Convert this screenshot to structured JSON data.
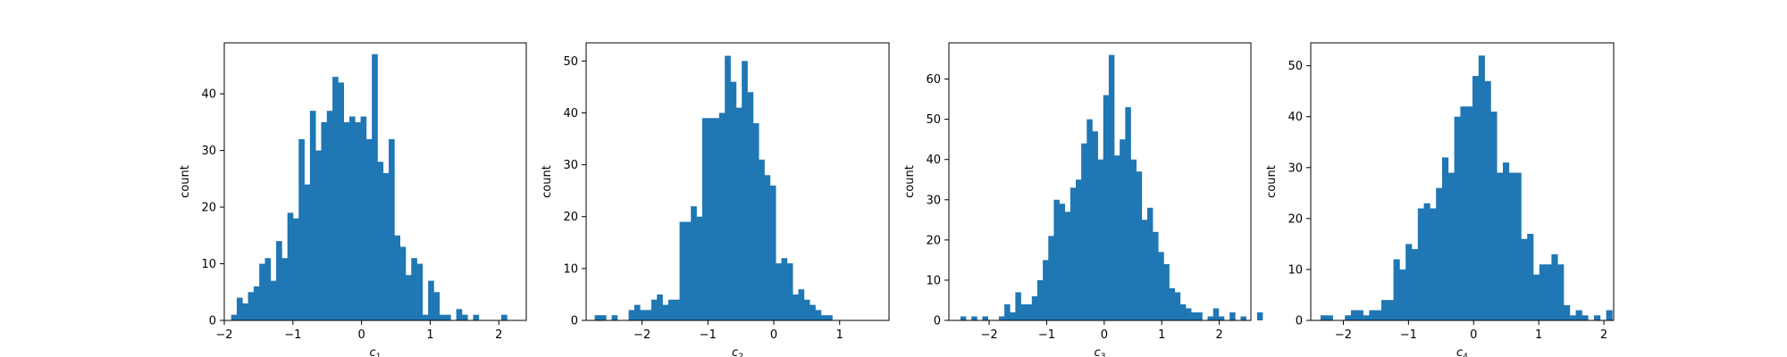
{
  "figure": {
    "background": "#ffffff",
    "bar_color": "#1f77b4"
  },
  "chart_data": [
    {
      "type": "bar",
      "title": "",
      "xlabel_main": "c",
      "xlabel_sub": "1",
      "ylabel": "count",
      "xlim": [
        -2.0,
        2.4
      ],
      "ylim": [
        0,
        49
      ],
      "xticks": [
        -2,
        -1,
        0,
        1,
        2
      ],
      "xtick_labels": [
        "−2",
        "−1",
        "0",
        "1",
        "2"
      ],
      "yticks": [
        0,
        10,
        20,
        30,
        40
      ],
      "bin_start": -1.9,
      "bin_width": 0.082,
      "values": [
        1,
        4,
        3,
        5,
        6,
        10,
        11,
        7,
        14,
        11,
        19,
        18,
        32,
        24,
        37,
        30,
        35,
        37,
        43,
        42,
        35,
        36,
        35,
        36,
        32,
        47,
        28,
        26,
        32,
        15,
        13,
        8,
        11,
        10,
        1,
        7,
        5,
        1,
        1,
        0,
        2,
        1,
        0,
        1,
        0,
        0,
        0,
        0,
        1
      ]
    },
    {
      "type": "bar",
      "title": "",
      "xlabel_main": "c",
      "xlabel_sub": "2",
      "ylabel": "count",
      "xlim": [
        -2.85,
        1.75
      ],
      "ylim": [
        0,
        53.5
      ],
      "xticks": [
        -2,
        -1,
        0,
        1
      ],
      "xtick_labels": [
        "−2",
        "−1",
        "0",
        "1"
      ],
      "yticks": [
        0,
        10,
        20,
        30,
        40,
        50
      ],
      "bin_start": -2.72,
      "bin_width": 0.0859,
      "values": [
        1,
        1,
        0,
        1,
        0,
        0,
        2,
        3,
        2,
        2,
        4,
        5,
        3,
        4,
        4,
        19,
        19,
        22,
        20,
        39,
        39,
        39,
        40,
        51,
        46,
        41,
        50,
        44,
        38,
        31,
        28,
        26,
        11,
        12,
        11,
        5,
        6,
        4,
        3,
        2,
        1,
        1
      ]
    },
    {
      "type": "bar",
      "title": "",
      "xlabel_main": "c",
      "xlabel_sub": "3",
      "ylabel": "count",
      "xlim": [
        -2.7,
        2.55
      ],
      "ylim": [
        0,
        69
      ],
      "xticks": [
        -2,
        -1,
        0,
        1,
        2
      ],
      "xtick_labels": [
        "−2",
        "−1",
        "0",
        "1",
        "2"
      ],
      "yticks": [
        0,
        10,
        20,
        30,
        40,
        50,
        60
      ],
      "bin_start": -2.5,
      "bin_width": 0.0955,
      "values": [
        1,
        0,
        1,
        0,
        1,
        0,
        0,
        1,
        4,
        2,
        7,
        4,
        4,
        6,
        10,
        15,
        21,
        30,
        29,
        27,
        33,
        35,
        44,
        50,
        47,
        40,
        56,
        66,
        41,
        45,
        53,
        40,
        37,
        25,
        28,
        22,
        17,
        14,
        8,
        7,
        4,
        3,
        2,
        2,
        0,
        1,
        3,
        1,
        0,
        2,
        0,
        1,
        0,
        0,
        2
      ]
    },
    {
      "type": "bar",
      "title": "",
      "xlabel_main": "c",
      "xlabel_sub": "4",
      "ylabel": "count",
      "xlim": [
        -2.5,
        2.15
      ],
      "ylim": [
        0,
        54.5
      ],
      "xticks": [
        -2,
        -1,
        0,
        1,
        2
      ],
      "xtick_labels": [
        "−2",
        "−1",
        "0",
        "1",
        "2"
      ],
      "yticks": [
        0,
        10,
        20,
        30,
        40,
        50
      ],
      "bin_start": -2.35,
      "bin_width": 0.0933,
      "values": [
        1,
        1,
        0,
        0,
        1,
        2,
        2,
        1,
        2,
        2,
        4,
        4,
        12,
        10,
        15,
        14,
        22,
        23,
        22,
        26,
        32,
        29,
        40,
        42,
        42,
        48,
        52,
        47,
        41,
        29,
        31,
        29,
        29,
        16,
        17,
        9,
        11,
        11,
        13,
        11,
        3,
        1,
        2,
        1,
        0,
        1,
        0,
        2
      ]
    }
  ]
}
